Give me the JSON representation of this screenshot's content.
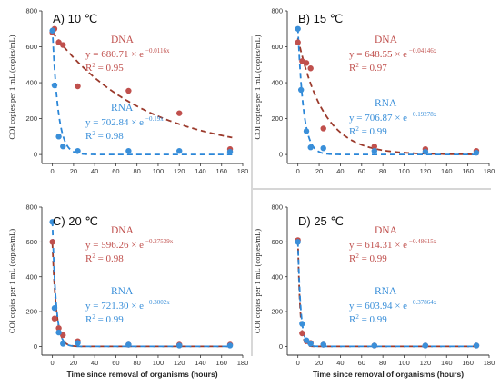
{
  "figure": {
    "y_axis_label": "COI copies per 1 mL (copies/mL)",
    "x_axis_label": "Time since removal of organisms (hours)",
    "colors": {
      "dna": "#c0504d",
      "rna": "#3a8fd9",
      "dna_fit": "#9b3a2c",
      "rna_fit": "#2a86d8"
    }
  },
  "chart_data": [
    {
      "type": "scatter",
      "title": "A) 10 ℃",
      "xlim": [
        -10,
        180
      ],
      "ylim": [
        -50,
        800
      ],
      "xticks": [
        "0",
        "20",
        "40",
        "60",
        "80",
        "100",
        "120",
        "140",
        "160",
        "180"
      ],
      "yticks": [
        "0",
        "200",
        "400",
        "600",
        "800"
      ],
      "dna": {
        "label": "DNA",
        "eq_prefix": "y = 680.71 × e",
        "eq_exp": "−0.0116x",
        "r2": "0.95",
        "a": 680.71,
        "k": 0.0116,
        "points": [
          [
            0,
            680
          ],
          [
            2,
            700
          ],
          [
            6,
            625
          ],
          [
            10,
            610
          ],
          [
            24,
            380
          ],
          [
            72,
            355
          ],
          [
            120,
            230
          ],
          [
            168,
            30
          ]
        ]
      },
      "rna": {
        "label": "RNA",
        "eq_prefix": "y = 702.84 × e",
        "eq_exp": "−0.19x",
        "r2": "0.98",
        "a": 702.84,
        "k": 0.19,
        "points": [
          [
            0,
            690
          ],
          [
            2,
            385
          ],
          [
            6,
            100
          ],
          [
            10,
            45
          ],
          [
            24,
            20
          ],
          [
            72,
            20
          ],
          [
            120,
            20
          ],
          [
            168,
            15
          ]
        ]
      }
    },
    {
      "type": "scatter",
      "title": "B) 15 ℃",
      "xlim": [
        -10,
        180
      ],
      "ylim": [
        -50,
        800
      ],
      "xticks": [
        "0",
        "20",
        "40",
        "60",
        "80",
        "100",
        "120",
        "140",
        "160",
        "180"
      ],
      "yticks": [
        "0",
        "200",
        "400",
        "600",
        "800"
      ],
      "dna": {
        "label": "DNA",
        "eq_prefix": "y = 648.55 × e",
        "eq_exp": "−0.04146x",
        "r2": "0.97",
        "a": 648.55,
        "k": 0.04146,
        "points": [
          [
            0,
            625
          ],
          [
            4,
            520
          ],
          [
            8,
            510
          ],
          [
            12,
            480
          ],
          [
            24,
            145
          ],
          [
            72,
            45
          ],
          [
            120,
            30
          ],
          [
            168,
            20
          ]
        ]
      },
      "rna": {
        "label": "RNA",
        "eq_prefix": "y = 706.87 × e",
        "eq_exp": "−0.19278x",
        "r2": "0.99",
        "a": 706.87,
        "k": 0.19278,
        "points": [
          [
            0,
            700
          ],
          [
            3,
            360
          ],
          [
            8,
            130
          ],
          [
            12,
            40
          ],
          [
            24,
            35
          ],
          [
            72,
            20
          ],
          [
            120,
            15
          ],
          [
            168,
            10
          ]
        ]
      }
    },
    {
      "type": "scatter",
      "title": "C) 20 ℃",
      "xlim": [
        -10,
        180
      ],
      "ylim": [
        -50,
        800
      ],
      "xticks": [
        "0",
        "20",
        "40",
        "60",
        "80",
        "100",
        "120",
        "140",
        "160",
        "180"
      ],
      "yticks": [
        "0",
        "200",
        "400",
        "600",
        "800"
      ],
      "dna": {
        "label": "DNA",
        "eq_prefix": "y = 596.26 × e",
        "eq_exp": "−0.27539x",
        "r2": "0.98",
        "a": 596.26,
        "k": 0.27539,
        "points": [
          [
            0,
            600
          ],
          [
            2,
            160
          ],
          [
            6,
            105
          ],
          [
            10,
            65
          ],
          [
            24,
            30
          ],
          [
            72,
            10
          ],
          [
            120,
            10
          ],
          [
            168,
            10
          ]
        ]
      },
      "rna": {
        "label": "RNA",
        "eq_prefix": "y = 721.30 × e",
        "eq_exp": "−0.3002x",
        "r2": "0.99",
        "a": 721.3,
        "k": 0.3002,
        "points": [
          [
            0,
            715
          ],
          [
            2,
            220
          ],
          [
            6,
            80
          ],
          [
            10,
            15
          ],
          [
            24,
            20
          ],
          [
            72,
            10
          ],
          [
            120,
            5
          ],
          [
            168,
            5
          ]
        ]
      }
    },
    {
      "type": "scatter",
      "title": "D) 25 ℃",
      "xlim": [
        -10,
        180
      ],
      "ylim": [
        -50,
        800
      ],
      "xticks": [
        "0",
        "20",
        "40",
        "60",
        "80",
        "100",
        "120",
        "140",
        "160",
        "180"
      ],
      "yticks": [
        "0",
        "200",
        "400",
        "600",
        "800"
      ],
      "dna": {
        "label": "DNA",
        "eq_prefix": "y = 614.31 × e",
        "eq_exp": "−0.48615x",
        "r2": "0.99",
        "a": 614.31,
        "k": 0.48615,
        "points": [
          [
            0,
            610
          ],
          [
            4,
            75
          ],
          [
            8,
            30
          ],
          [
            12,
            20
          ],
          [
            24,
            10
          ],
          [
            72,
            5
          ],
          [
            120,
            5
          ],
          [
            168,
            5
          ]
        ]
      },
      "rna": {
        "label": "RNA",
        "eq_prefix": "y = 603.94 × e",
        "eq_exp": "−0.37864x",
        "r2": "0.99",
        "a": 603.94,
        "k": 0.37864,
        "points": [
          [
            0,
            600
          ],
          [
            4,
            130
          ],
          [
            8,
            35
          ],
          [
            12,
            15
          ],
          [
            24,
            10
          ],
          [
            72,
            5
          ],
          [
            120,
            5
          ],
          [
            168,
            5
          ]
        ]
      }
    }
  ]
}
